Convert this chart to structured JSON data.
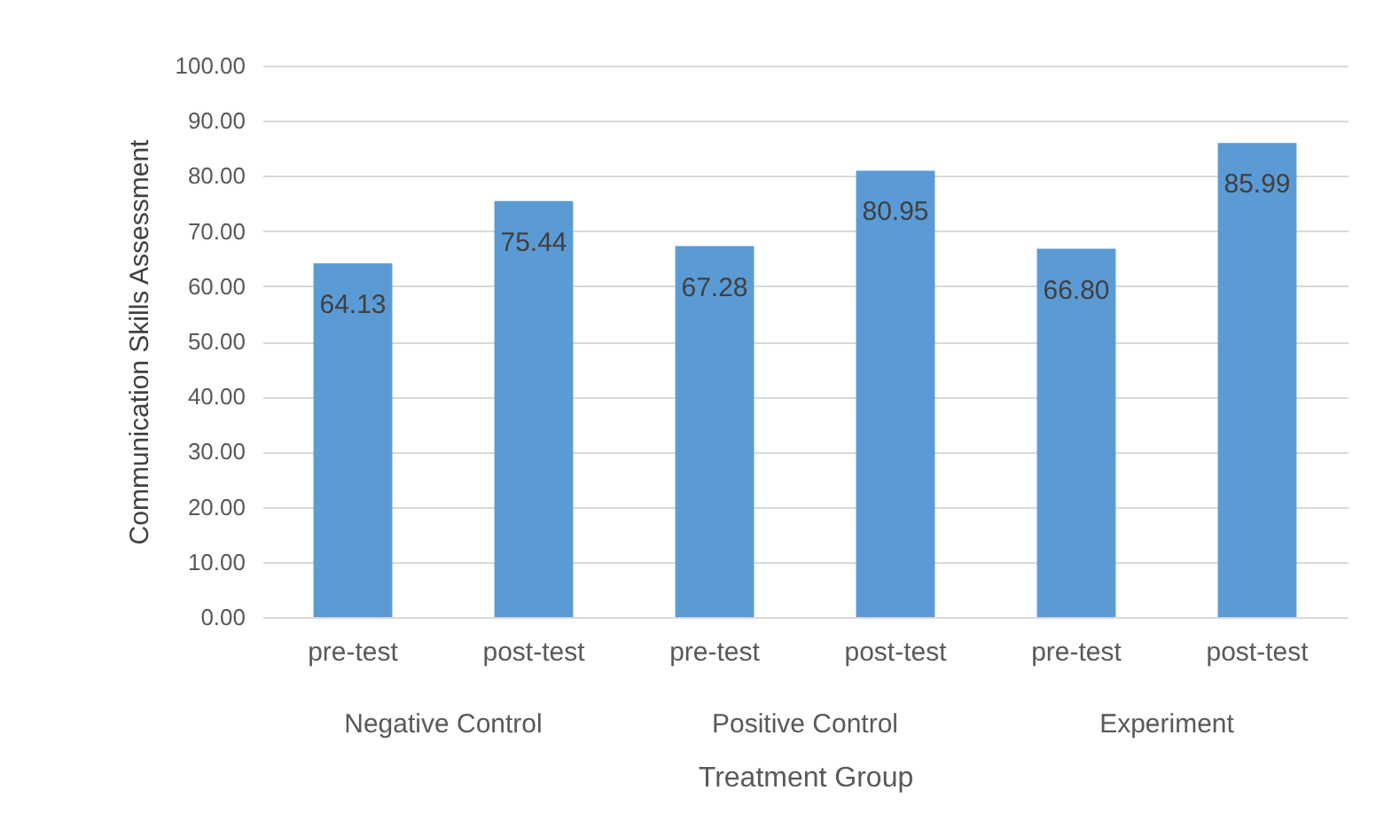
{
  "chart_data": {
    "type": "bar",
    "xlabel": "Treatment Group",
    "ylabel": "Communication Skills Assessment",
    "categories": [
      "pre-test",
      "post-test",
      "pre-test",
      "post-test",
      "pre-test",
      "post-test"
    ],
    "values": [
      64.13,
      75.44,
      67.28,
      80.95,
      66.8,
      85.99
    ],
    "value_labels": [
      "64.13",
      "75.44",
      "67.28",
      "80.95",
      "66.80",
      "85.99"
    ],
    "color": "#5b9bd5",
    "ylim": [
      0,
      100
    ],
    "yticks": [
      {
        "value": 0,
        "label": "0.00"
      },
      {
        "value": 10,
        "label": "10.00"
      },
      {
        "value": 20,
        "label": "20.00"
      },
      {
        "value": 30,
        "label": "30.00"
      },
      {
        "value": 40,
        "label": "40.00"
      },
      {
        "value": 50,
        "label": "50.00"
      },
      {
        "value": 60,
        "label": "60.00"
      },
      {
        "value": 70,
        "label": "70.00"
      },
      {
        "value": 80,
        "label": "80.00"
      },
      {
        "value": 90,
        "label": "90.00"
      },
      {
        "value": 100,
        "label": "100.00"
      }
    ],
    "grid": "y",
    "annotations": [
      "Negative Control",
      "Positive Control",
      "Experiment"
    ]
  }
}
